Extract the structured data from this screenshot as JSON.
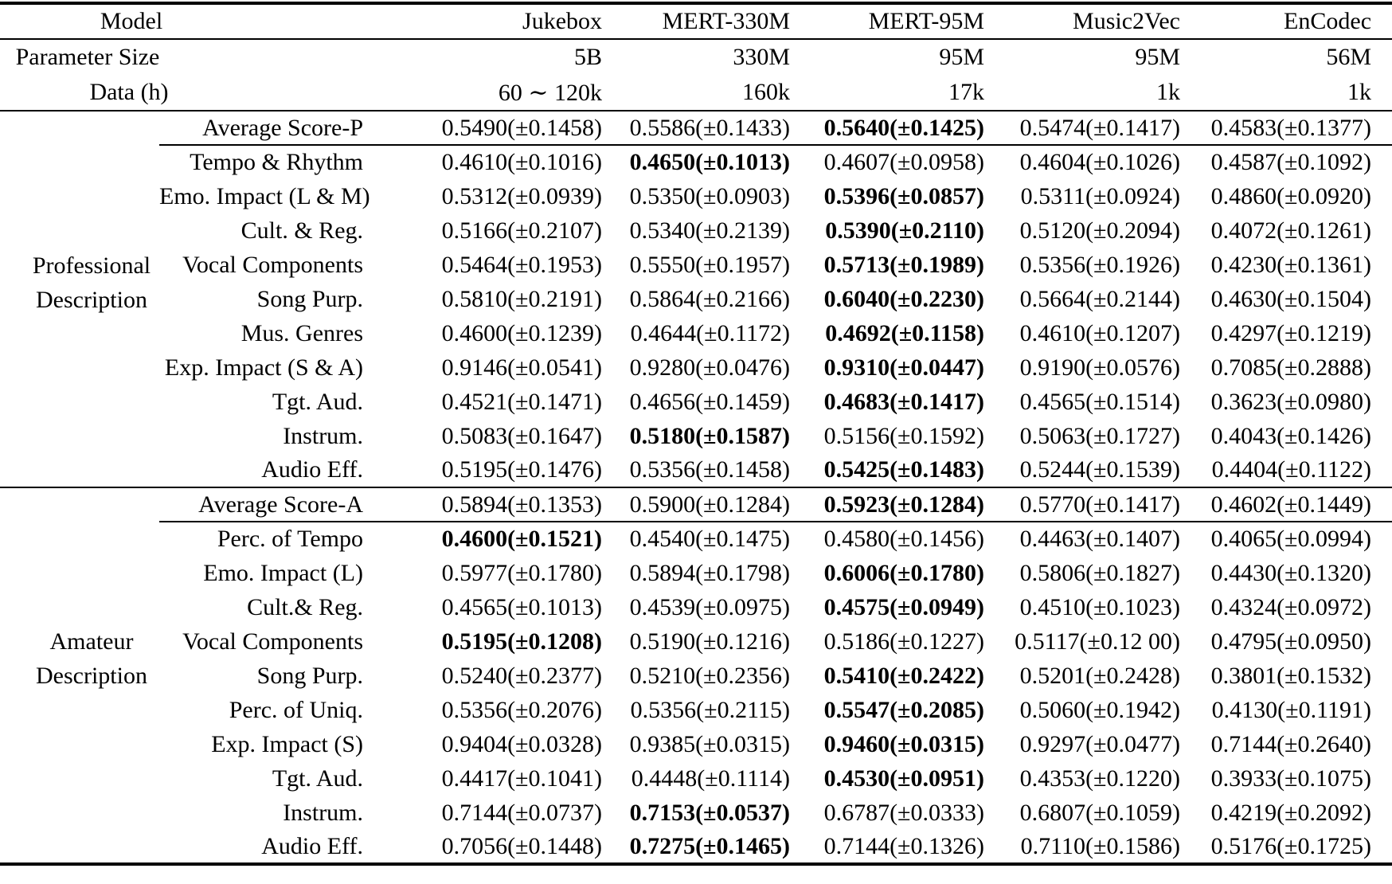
{
  "header": {
    "model_label": "Model",
    "columns": [
      "Jukebox",
      "MERT-330M",
      "MERT-95M",
      "Music2Vec",
      "EnCodec"
    ],
    "param_size": {
      "label": "Parameter Size",
      "values": [
        "5B",
        "330M",
        "95M",
        "95M",
        "56M"
      ]
    },
    "data_hours": {
      "label": "Data (h)",
      "values": [
        "60 ∼ 120k",
        "160k",
        "17k",
        "1k",
        "1k"
      ]
    }
  },
  "sections": [
    {
      "label_lines": [
        "Professional",
        "Description"
      ],
      "rows": [
        {
          "label": "Average Score-P",
          "is_average": true,
          "bold": 2,
          "values": [
            "0.5490(±0.1458)",
            "0.5586(±0.1433)",
            "0.5640(±0.1425)",
            "0.5474(±0.1417)",
            "0.4583(±0.1377)"
          ]
        },
        {
          "label": "Tempo & Rhythm",
          "bold": 1,
          "values": [
            "0.4610(±0.1016)",
            "0.4650(±0.1013)",
            "0.4607(±0.0958)",
            "0.4604(±0.1026)",
            "0.4587(±0.1092)"
          ]
        },
        {
          "label": "Emo. Impact (L & M)",
          "bold": 2,
          "values": [
            "0.5312(±0.0939)",
            "0.5350(±0.0903)",
            "0.5396(±0.0857)",
            "0.5311(±0.0924)",
            "0.4860(±0.0920)"
          ]
        },
        {
          "label": "Cult. & Reg.",
          "bold": 2,
          "values": [
            "0.5166(±0.2107)",
            "0.5340(±0.2139)",
            "0.5390(±0.2110)",
            "0.5120(±0.2094)",
            "0.4072(±0.1261)"
          ]
        },
        {
          "label": "Vocal Components",
          "bold": 2,
          "values": [
            "0.5464(±0.1953)",
            "0.5550(±0.1957)",
            "0.5713(±0.1989)",
            "0.5356(±0.1926)",
            "0.4230(±0.1361)"
          ]
        },
        {
          "label": "Song Purp.",
          "bold": 2,
          "values": [
            "0.5810(±0.2191)",
            "0.5864(±0.2166)",
            "0.6040(±0.2230)",
            "0.5664(±0.2144)",
            "0.4630(±0.1504)"
          ]
        },
        {
          "label": "Mus. Genres",
          "bold": 2,
          "values": [
            "0.4600(±0.1239)",
            "0.4644(±0.1172)",
            "0.4692(±0.1158)",
            "0.4610(±0.1207)",
            "0.4297(±0.1219)"
          ]
        },
        {
          "label": "Exp. Impact (S & A)",
          "bold": 2,
          "values": [
            "0.9146(±0.0541)",
            "0.9280(±0.0476)",
            "0.9310(±0.0447)",
            "0.9190(±0.0576)",
            "0.7085(±0.2888)"
          ]
        },
        {
          "label": "Tgt. Aud.",
          "bold": 2,
          "values": [
            "0.4521(±0.1471)",
            "0.4656(±0.1459)",
            "0.4683(±0.1417)",
            "0.4565(±0.1514)",
            "0.3623(±0.0980)"
          ]
        },
        {
          "label": "Instrum.",
          "bold": 1,
          "values": [
            "0.5083(±0.1647)",
            "0.5180(±0.1587)",
            "0.5156(±0.1592)",
            "0.5063(±0.1727)",
            "0.4043(±0.1426)"
          ]
        },
        {
          "label": "Audio Eff.",
          "bold": 2,
          "values": [
            "0.5195(±0.1476)",
            "0.5356(±0.1458)",
            "0.5425(±0.1483)",
            "0.5244(±0.1539)",
            "0.4404(±0.1122)"
          ]
        }
      ]
    },
    {
      "label_lines": [
        "Amateur",
        "Description"
      ],
      "rows": [
        {
          "label": "Average Score-A",
          "is_average": true,
          "bold": 2,
          "values": [
            "0.5894(±0.1353)",
            "0.5900(±0.1284)",
            "0.5923(±0.1284)",
            "0.5770(±0.1417)",
            "0.4602(±0.1449)"
          ]
        },
        {
          "label": "Perc. of Tempo",
          "bold": 0,
          "values": [
            "0.4600(±0.1521)",
            "0.4540(±0.1475)",
            "0.4580(±0.1456)",
            "0.4463(±0.1407)",
            "0.4065(±0.0994)"
          ]
        },
        {
          "label": "Emo. Impact (L)",
          "bold": 2,
          "values": [
            "0.5977(±0.1780)",
            "0.5894(±0.1798)",
            "0.6006(±0.1780)",
            "0.5806(±0.1827)",
            "0.4430(±0.1320)"
          ]
        },
        {
          "label": "Cult.& Reg.",
          "bold": 2,
          "values": [
            "0.4565(±0.1013)",
            "0.4539(±0.0975)",
            "0.4575(±0.0949)",
            "0.4510(±0.1023)",
            "0.4324(±0.0972)"
          ]
        },
        {
          "label": "Vocal Components",
          "bold": 0,
          "values": [
            "0.5195(±0.1208)",
            "0.5190(±0.1216)",
            "0.5186(±0.1227)",
            "0.5117(±0.12 00)",
            "0.4795(±0.0950)"
          ]
        },
        {
          "label": "Song Purp.",
          "bold": 2,
          "values": [
            "0.5240(±0.2377)",
            "0.5210(±0.2356)",
            "0.5410(±0.2422)",
            "0.5201(±0.2428)",
            "0.3801(±0.1532)"
          ]
        },
        {
          "label": "Perc. of Uniq.",
          "bold": 2,
          "values": [
            "0.5356(±0.2076)",
            "0.5356(±0.2115)",
            "0.5547(±0.2085)",
            "0.5060(±0.1942)",
            "0.4130(±0.1191)"
          ]
        },
        {
          "label": "Exp. Impact (S)",
          "bold": 2,
          "values": [
            "0.9404(±0.0328)",
            "0.9385(±0.0315)",
            "0.9460(±0.0315)",
            "0.9297(±0.0477)",
            "0.7144(±0.2640)"
          ]
        },
        {
          "label": "Tgt. Aud.",
          "bold": 2,
          "values": [
            "0.4417(±0.1041)",
            "0.4448(±0.1114)",
            "0.4530(±0.0951)",
            "0.4353(±0.1220)",
            "0.3933(±0.1075)"
          ]
        },
        {
          "label": "Instrum.",
          "bold": 1,
          "values": [
            "0.7144(±0.0737)",
            "0.7153(±0.0537)",
            "0.6787(±0.0333)",
            "0.6807(±0.1059)",
            "0.4219(±0.2092)"
          ]
        },
        {
          "label": "Audio Eff.",
          "bold": 1,
          "values": [
            "0.7056(±0.1448)",
            "0.7275(±0.1465)",
            "0.7144(±0.1326)",
            "0.7110(±0.1586)",
            "0.5176(±0.1725)"
          ]
        }
      ]
    }
  ]
}
